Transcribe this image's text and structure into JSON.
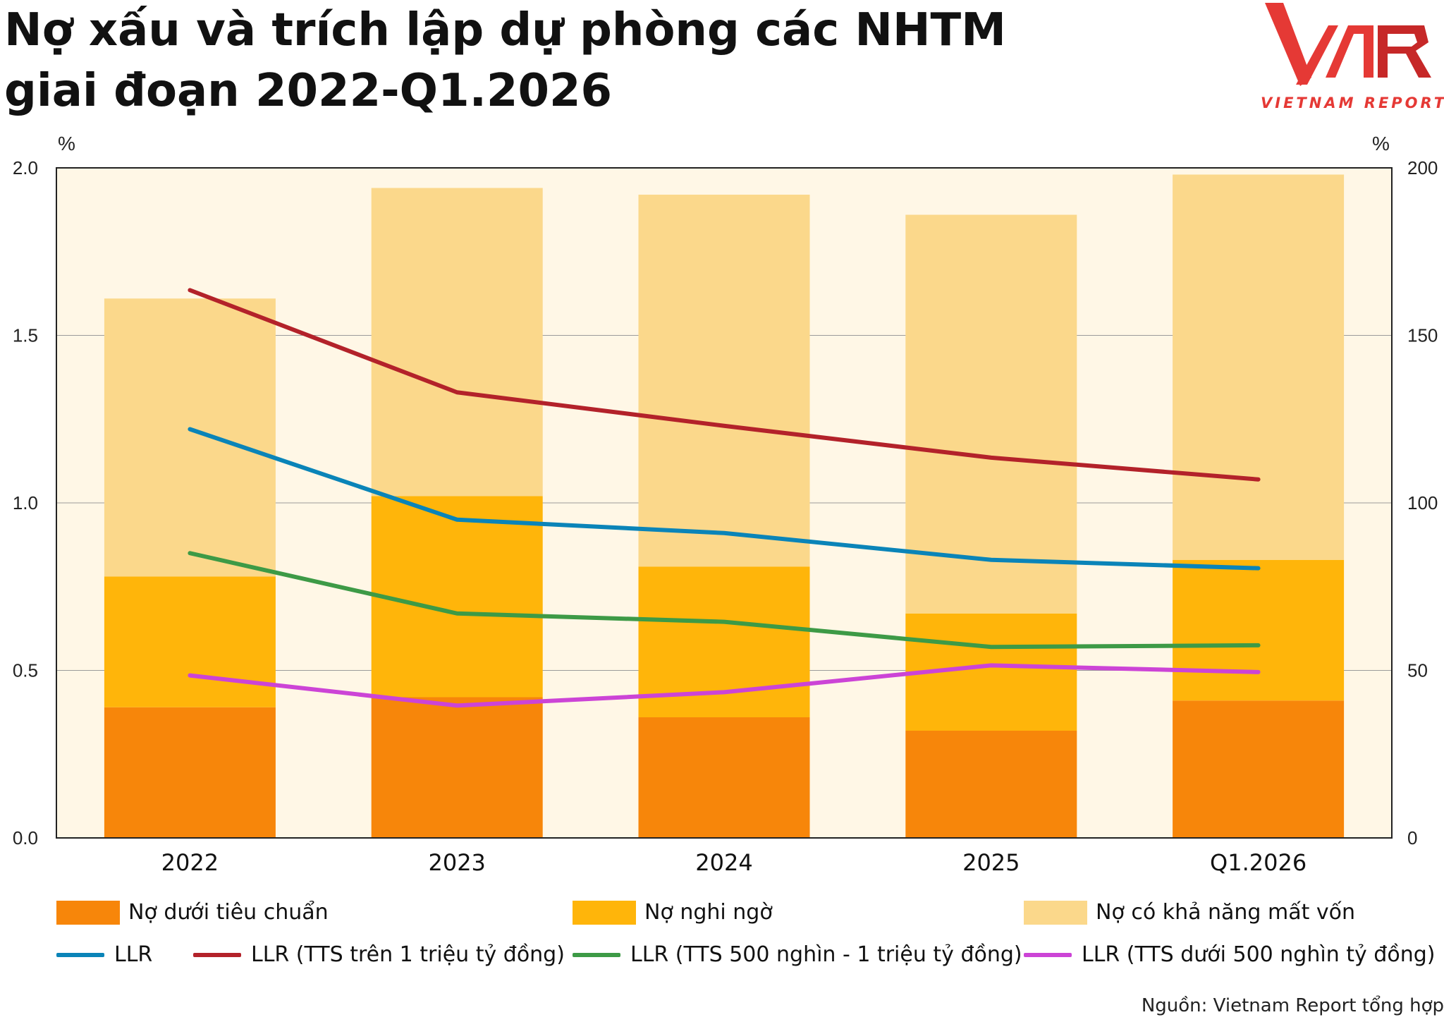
{
  "title_line1": "Nợ xấu và trích lập dự phòng các NHTM",
  "title_line2": "giai đoạn 2022-Q1.2026",
  "logo": {
    "text": "VNR",
    "subtitle": "VIETNAM REPORT",
    "color": "#e53935"
  },
  "source": "Nguồn: Vietnam Report tổng hợp",
  "colors": {
    "plot_bg": "#fff7e6",
    "substandard": "#f7860a",
    "doubtful": "#ffb50a",
    "loss": "#fbd88b",
    "llr": "#0a84b8",
    "llr_large": "#b3222a",
    "llr_mid": "#3d9a46",
    "llr_small": "#cc44d6"
  },
  "chart_data": {
    "type": "bar",
    "stacked": true,
    "categories": [
      "2022",
      "2023",
      "2024",
      "2025",
      "Q1.2026"
    ],
    "y_left": {
      "unit": "%",
      "range": [
        0,
        2.0
      ],
      "ticks": [
        "0.0",
        "0.5",
        "1.0",
        "1.5",
        "2.0"
      ]
    },
    "y_right": {
      "unit": "%",
      "range": [
        0,
        200
      ],
      "ticks": [
        "0",
        "50",
        "100",
        "150",
        "200"
      ]
    },
    "bar_series": [
      {
        "name": "Nợ dưới tiêu chuẩn",
        "values": [
          0.39,
          0.42,
          0.36,
          0.32,
          0.41
        ]
      },
      {
        "name": "Nợ nghi ngờ",
        "values": [
          0.39,
          0.6,
          0.45,
          0.35,
          0.42
        ]
      },
      {
        "name": "Nợ có khả năng mất vốn",
        "values": [
          0.83,
          0.92,
          1.11,
          1.19,
          1.15
        ]
      }
    ],
    "line_series": [
      {
        "name": "LLR",
        "axis": "right",
        "values": [
          122,
          95,
          91,
          83,
          80.5
        ]
      },
      {
        "name": "LLR (TTS trên 1 triệu tỷ đồng)",
        "axis": "right",
        "values": [
          163.5,
          133,
          123,
          113.5,
          107
        ]
      },
      {
        "name": "LLR (TTS 500 nghìn - 1 triệu tỷ đồng)",
        "axis": "right",
        "values": [
          85,
          67,
          64.5,
          57,
          57.5
        ]
      },
      {
        "name": "LLR (TTS dưới 500 nghìn tỷ đồng)",
        "axis": "right",
        "values": [
          48.5,
          39.5,
          43.5,
          51.5,
          49.5
        ]
      }
    ],
    "grid": true,
    "legend_position": "bottom"
  }
}
